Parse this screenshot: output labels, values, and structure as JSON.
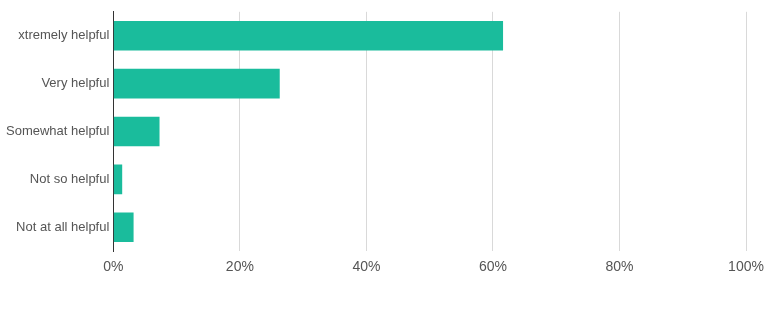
{
  "chart_data": {
    "type": "bar",
    "orientation": "horizontal",
    "categories": [
      "xtremely helpful",
      "Very helpful",
      "Somewhat helpful",
      "Not so helpful",
      "Not at all helpful"
    ],
    "values": [
      61.6,
      26.3,
      7.3,
      1.4,
      3.2
    ],
    "color": "#1abc9c",
    "xlim": [
      0,
      100
    ],
    "xticks": [
      {
        "value": 0,
        "label": "0%"
      },
      {
        "value": 20,
        "label": "20%"
      },
      {
        "value": 40,
        "label": "40%"
      },
      {
        "value": 60,
        "label": "60%"
      },
      {
        "value": 80,
        "label": "80%"
      },
      {
        "value": 100,
        "label": "100%"
      }
    ],
    "grid": true
  }
}
